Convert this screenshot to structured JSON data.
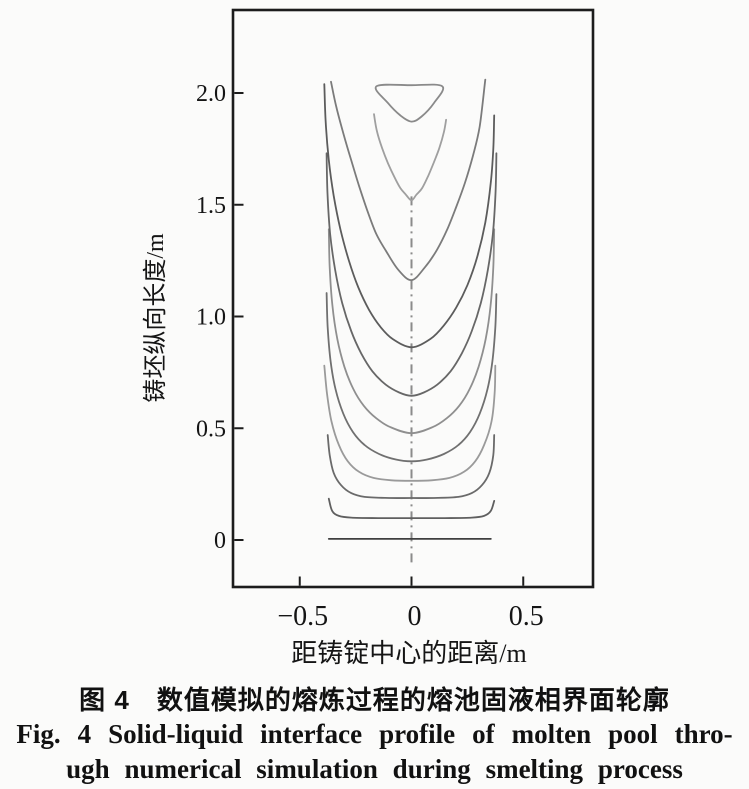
{
  "figure": {
    "caption_zh": "图 4　数值模拟的熔炼过程的熔池固液相界面轮廓",
    "caption_en_1": "Fig. 4   Solid-liquid interface profile of molten pool thro-",
    "caption_en_2": "ugh numerical simulation during smelting process"
  },
  "chart_data": {
    "type": "line",
    "title": "",
    "xlabel": "距铸锭中心的距离/m",
    "ylabel": "铸坯纵向长度/m",
    "xlim": [
      -0.8,
      0.81
    ],
    "ylim": [
      -0.21,
      2.37
    ],
    "grid": false,
    "frame": "full-box",
    "legend": null,
    "axis_color": "#1c1c1c",
    "background": "#fbfbfa",
    "xticks": [
      {
        "value": -0.5,
        "label": "−0.5"
      },
      {
        "value": 0,
        "label": "0"
      },
      {
        "value": 0.5,
        "label": "0.5"
      }
    ],
    "yticks": [
      {
        "value": 0,
        "label": "0"
      },
      {
        "value": 0.5,
        "label": "0.5"
      },
      {
        "value": 1.0,
        "label": "1.0"
      },
      {
        "value": 1.5,
        "label": "1.5"
      },
      {
        "value": 2.0,
        "label": "2.0"
      }
    ],
    "centerline": {
      "x": 0,
      "y_from": -0.1,
      "y_to": 1.54,
      "style": "dash-dot",
      "color": "#8b8b8b"
    },
    "series": [
      {
        "name": "interface-profile-01",
        "closed": false,
        "color": "#3f3f3f",
        "points": [
          [
            -0.37,
            0.005
          ],
          [
            0.355,
            0.005
          ]
        ]
      },
      {
        "name": "interface-profile-02",
        "closed": false,
        "color": "#5f5f5f",
        "points": [
          [
            -0.37,
            0.185
          ],
          [
            -0.355,
            0.13
          ],
          [
            -0.325,
            0.108
          ],
          [
            -0.27,
            0.1
          ],
          [
            -0.15,
            0.098
          ],
          [
            0,
            0.098
          ],
          [
            0.15,
            0.098
          ],
          [
            0.27,
            0.1
          ],
          [
            0.325,
            0.108
          ],
          [
            0.355,
            0.13
          ],
          [
            0.37,
            0.175
          ]
        ]
      },
      {
        "name": "interface-profile-03",
        "closed": false,
        "color": "#6a6a6a",
        "points": [
          [
            -0.375,
            0.47
          ],
          [
            -0.366,
            0.38
          ],
          [
            -0.348,
            0.3
          ],
          [
            -0.315,
            0.245
          ],
          [
            -0.27,
            0.21
          ],
          [
            -0.21,
            0.193
          ],
          [
            -0.1,
            0.188
          ],
          [
            0,
            0.188
          ],
          [
            0.1,
            0.188
          ],
          [
            0.21,
            0.193
          ],
          [
            0.27,
            0.21
          ],
          [
            0.315,
            0.245
          ],
          [
            0.348,
            0.3
          ],
          [
            0.366,
            0.38
          ],
          [
            0.37,
            0.47
          ]
        ]
      },
      {
        "name": "interface-profile-04",
        "closed": false,
        "color": "#9a9a9a",
        "points": [
          [
            -0.39,
            0.78
          ],
          [
            -0.378,
            0.655
          ],
          [
            -0.358,
            0.53
          ],
          [
            -0.325,
            0.425
          ],
          [
            -0.285,
            0.352
          ],
          [
            -0.235,
            0.305
          ],
          [
            -0.17,
            0.278
          ],
          [
            -0.09,
            0.267
          ],
          [
            0,
            0.265
          ],
          [
            0.09,
            0.267
          ],
          [
            0.17,
            0.278
          ],
          [
            0.235,
            0.305
          ],
          [
            0.285,
            0.352
          ],
          [
            0.325,
            0.425
          ],
          [
            0.358,
            0.53
          ],
          [
            0.372,
            0.655
          ],
          [
            0.375,
            0.78
          ]
        ]
      },
      {
        "name": "interface-profile-05",
        "closed": false,
        "color": "#707070",
        "points": [
          [
            -0.38,
            1.105
          ],
          [
            -0.375,
            0.95
          ],
          [
            -0.362,
            0.8
          ],
          [
            -0.34,
            0.675
          ],
          [
            -0.305,
            0.565
          ],
          [
            -0.262,
            0.483
          ],
          [
            -0.21,
            0.425
          ],
          [
            -0.145,
            0.385
          ],
          [
            -0.07,
            0.36
          ],
          [
            0,
            0.352
          ],
          [
            0.07,
            0.36
          ],
          [
            0.145,
            0.385
          ],
          [
            0.21,
            0.425
          ],
          [
            0.262,
            0.483
          ],
          [
            0.305,
            0.565
          ],
          [
            0.34,
            0.675
          ],
          [
            0.362,
            0.8
          ],
          [
            0.375,
            0.95
          ],
          [
            0.38,
            1.1
          ]
        ]
      },
      {
        "name": "interface-profile-06",
        "closed": false,
        "color": "#8f8f8f",
        "points": [
          [
            -0.37,
            1.39
          ],
          [
            -0.366,
            1.22
          ],
          [
            -0.354,
            1.05
          ],
          [
            -0.332,
            0.9
          ],
          [
            -0.3,
            0.775
          ],
          [
            -0.26,
            0.675
          ],
          [
            -0.213,
            0.6
          ],
          [
            -0.158,
            0.545
          ],
          [
            -0.095,
            0.505
          ],
          [
            0,
            0.478
          ],
          [
            0.095,
            0.505
          ],
          [
            0.158,
            0.545
          ],
          [
            0.213,
            0.6
          ],
          [
            0.26,
            0.675
          ],
          [
            0.3,
            0.775
          ],
          [
            0.332,
            0.9
          ],
          [
            0.354,
            1.05
          ],
          [
            0.366,
            1.22
          ],
          [
            0.37,
            1.39
          ]
        ]
      },
      {
        "name": "interface-profile-07",
        "closed": false,
        "color": "#676767",
        "points": [
          [
            -0.38,
            1.73
          ],
          [
            -0.376,
            1.55
          ],
          [
            -0.364,
            1.37
          ],
          [
            -0.342,
            1.21
          ],
          [
            -0.31,
            1.06
          ],
          [
            -0.27,
            0.935
          ],
          [
            -0.225,
            0.835
          ],
          [
            -0.175,
            0.755
          ],
          [
            -0.115,
            0.695
          ],
          [
            -0.055,
            0.66
          ],
          [
            0,
            0.645
          ],
          [
            0.055,
            0.66
          ],
          [
            0.115,
            0.695
          ],
          [
            0.175,
            0.755
          ],
          [
            0.225,
            0.835
          ],
          [
            0.27,
            0.935
          ],
          [
            0.31,
            1.06
          ],
          [
            0.342,
            1.21
          ],
          [
            0.364,
            1.37
          ],
          [
            0.376,
            1.55
          ],
          [
            0.38,
            1.73
          ]
        ]
      },
      {
        "name": "interface-profile-08",
        "closed": false,
        "color": "#5c5c5c",
        "points": [
          [
            -0.39,
            2.04
          ],
          [
            -0.384,
            1.87
          ],
          [
            -0.37,
            1.7
          ],
          [
            -0.348,
            1.54
          ],
          [
            -0.318,
            1.39
          ],
          [
            -0.28,
            1.25
          ],
          [
            -0.238,
            1.13
          ],
          [
            -0.19,
            1.03
          ],
          [
            -0.14,
            0.955
          ],
          [
            -0.085,
            0.9
          ],
          [
            0,
            0.862
          ],
          [
            0.085,
            0.9
          ],
          [
            0.145,
            0.96
          ],
          [
            0.2,
            1.04
          ],
          [
            0.25,
            1.14
          ],
          [
            0.295,
            1.27
          ],
          [
            0.33,
            1.42
          ],
          [
            0.355,
            1.6
          ],
          [
            0.366,
            1.75
          ],
          [
            0.37,
            1.9
          ]
        ]
      },
      {
        "name": "interface-profile-09",
        "closed": false,
        "color": "#7b7b7b",
        "points": [
          [
            -0.36,
            2.05
          ],
          [
            -0.337,
            1.94
          ],
          [
            -0.305,
            1.82
          ],
          [
            -0.27,
            1.7
          ],
          [
            -0.235,
            1.585
          ],
          [
            -0.198,
            1.475
          ],
          [
            -0.158,
            1.37
          ],
          [
            -0.115,
            1.295
          ],
          [
            -0.06,
            1.21
          ],
          [
            0,
            1.163
          ],
          [
            0.06,
            1.22
          ],
          [
            0.115,
            1.3
          ],
          [
            0.16,
            1.39
          ],
          [
            0.2,
            1.49
          ],
          [
            0.24,
            1.6
          ],
          [
            0.275,
            1.72
          ],
          [
            0.305,
            1.85
          ],
          [
            0.33,
            2.06
          ]
        ]
      },
      {
        "name": "interface-profile-10",
        "closed": false,
        "color": "#9f9f9f",
        "points": [
          [
            -0.168,
            1.905
          ],
          [
            -0.155,
            1.83
          ],
          [
            -0.132,
            1.755
          ],
          [
            -0.105,
            1.685
          ],
          [
            -0.077,
            1.625
          ],
          [
            -0.05,
            1.575
          ],
          [
            -0.025,
            1.545
          ],
          [
            0,
            1.52
          ],
          [
            0.022,
            1.545
          ],
          [
            0.048,
            1.575
          ],
          [
            0.075,
            1.63
          ],
          [
            0.1,
            1.69
          ],
          [
            0.125,
            1.755
          ],
          [
            0.145,
            1.825
          ],
          [
            0.155,
            1.88
          ]
        ]
      },
      {
        "name": "interface-profile-11-final-pool",
        "closed": true,
        "color": "#8a8a8a",
        "points": [
          [
            -0.157,
            2.03
          ],
          [
            0.0,
            2.035
          ],
          [
            0.138,
            2.03
          ],
          [
            0.1,
            1.955
          ],
          [
            0.045,
            1.895
          ],
          [
            0,
            1.872
          ],
          [
            -0.05,
            1.9
          ],
          [
            -0.105,
            1.955
          ]
        ]
      }
    ]
  }
}
